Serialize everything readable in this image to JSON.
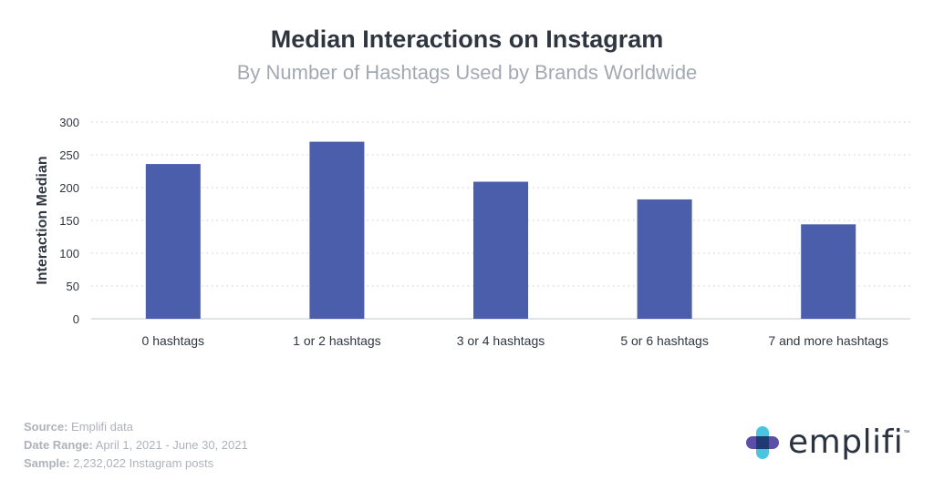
{
  "chart_data": {
    "type": "bar",
    "title": "Median Interactions on Instagram",
    "subtitle": "By Number of Hashtags Used by Brands Worldwide",
    "categories": [
      "0 hashtags",
      "1 or 2 hashtags",
      "3 or 4 hashtags",
      "5 or 6 hashtags",
      "7 and more hashtags"
    ],
    "values": [
      236,
      270,
      209,
      182,
      144
    ],
    "ylabel": "Interaction Median",
    "xlabel": "",
    "ylim": [
      0,
      300
    ],
    "yticks": [
      0,
      50,
      100,
      150,
      200,
      250,
      300
    ],
    "grid": true,
    "bar_color": "#4a5eab"
  },
  "footer": {
    "source_key": "Source:",
    "source_val": " Emplifi data",
    "date_key": "Date Range:",
    "date_val": " April 1, 2021 - June 30, 2021",
    "sample_key": "Sample:",
    "sample_val": " 2,232,022 Instagram posts"
  },
  "logo": {
    "text": "emplifi",
    "tm": "™"
  }
}
